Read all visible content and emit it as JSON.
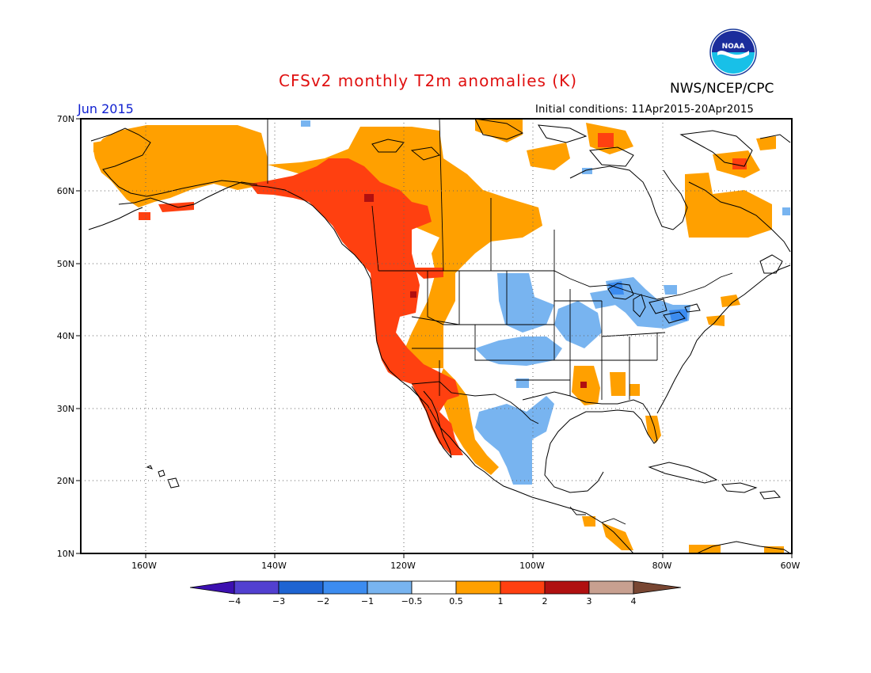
{
  "title": "CFSv2 monthly T2m anomalies (K)",
  "organization": "NWS/NCEP/CPC",
  "logo_text": "NOAA",
  "valid_month": "Jun 2015",
  "initial_conditions": "Initial conditions: 11Apr2015-20Apr2015",
  "map": {
    "lon_range": [
      -170,
      -60
    ],
    "lat_range": [
      10,
      70
    ],
    "lat_ticks": [
      "70N",
      "60N",
      "50N",
      "40N",
      "30N",
      "20N",
      "10N"
    ],
    "lon_ticks": [
      "160W",
      "140W",
      "120W",
      "100W",
      "80W",
      "60W"
    ],
    "grid": "dotted"
  },
  "colorbar": {
    "tick_labels": [
      "−4",
      "−3",
      "−2",
      "−1",
      "−0.5",
      "0.5",
      "1",
      "2",
      "3",
      "4"
    ],
    "colors": [
      "#3c10b0",
      "#5240d0",
      "#1e64d2",
      "#3c8cf0",
      "#78b4f0",
      "#ffffff",
      "#ffa000",
      "#ff4010",
      "#b01010",
      "#c8a090",
      "#784632"
    ]
  },
  "anomaly_regions": [
    {
      "name": "alaska-warm",
      "category": "0.5 to 1",
      "color": "#ffa000"
    },
    {
      "name": "pacific-northwest-warm",
      "category": "1 to 2",
      "color": "#ff4010"
    },
    {
      "name": "bc-hotspot",
      "category": "2 to 3",
      "color": "#b01010"
    },
    {
      "name": "northern-canada-warm",
      "category": "0.5 to 1",
      "color": "#ffa000"
    },
    {
      "name": "labrador-warm",
      "category": "0.5 to 1",
      "color": "#ffa000"
    },
    {
      "name": "great-plains-cool",
      "category": "-1 to -0.5",
      "color": "#78b4f0"
    },
    {
      "name": "great-lakes-cool",
      "category": "-1 to -0.5",
      "color": "#78b4f0"
    },
    {
      "name": "mexico-cool",
      "category": "-1 to -0.5",
      "color": "#78b4f0"
    },
    {
      "name": "mississippi-warm",
      "category": "0.5 to 2",
      "color": "#ffa000"
    },
    {
      "name": "florida-warm",
      "category": "0.5 to 1",
      "color": "#ffa000"
    },
    {
      "name": "central-america-warm",
      "category": "0.5 to 1",
      "color": "#ffa000"
    }
  ]
}
